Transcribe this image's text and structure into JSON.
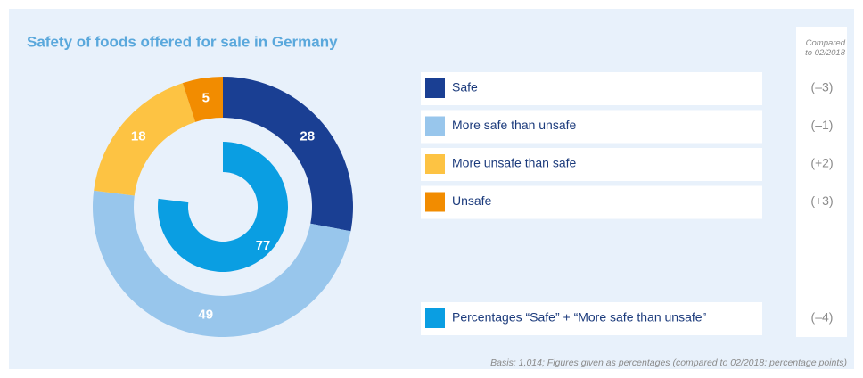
{
  "chart_data": {
    "type": "donut",
    "title": "Safety of foods offered for sale in Germany",
    "categories": [
      "Safe",
      "More safe than unsafe",
      "More unsafe than safe",
      "Unsafe"
    ],
    "values": [
      28,
      49,
      18,
      5
    ],
    "colors": [
      "#1a3f93",
      "#98c6ec",
      "#fdc343",
      "#f28c00"
    ],
    "inner": {
      "name": "Percentages “Safe” + “More safe than unsafe”",
      "value": 77,
      "color": "#0a9ee2"
    },
    "comparison": {
      "header": "Compared to 02/2018",
      "values": [
        -3,
        -1,
        2,
        3
      ],
      "value_labels": [
        "(–3)",
        "(–1)",
        "(+2)",
        "(+3)"
      ],
      "inner_value": -4,
      "inner_value_label": "(–4)"
    },
    "footnote": "Basis: 1,014; Figures given as percentages (compared to 02/2018: percentage points)"
  }
}
